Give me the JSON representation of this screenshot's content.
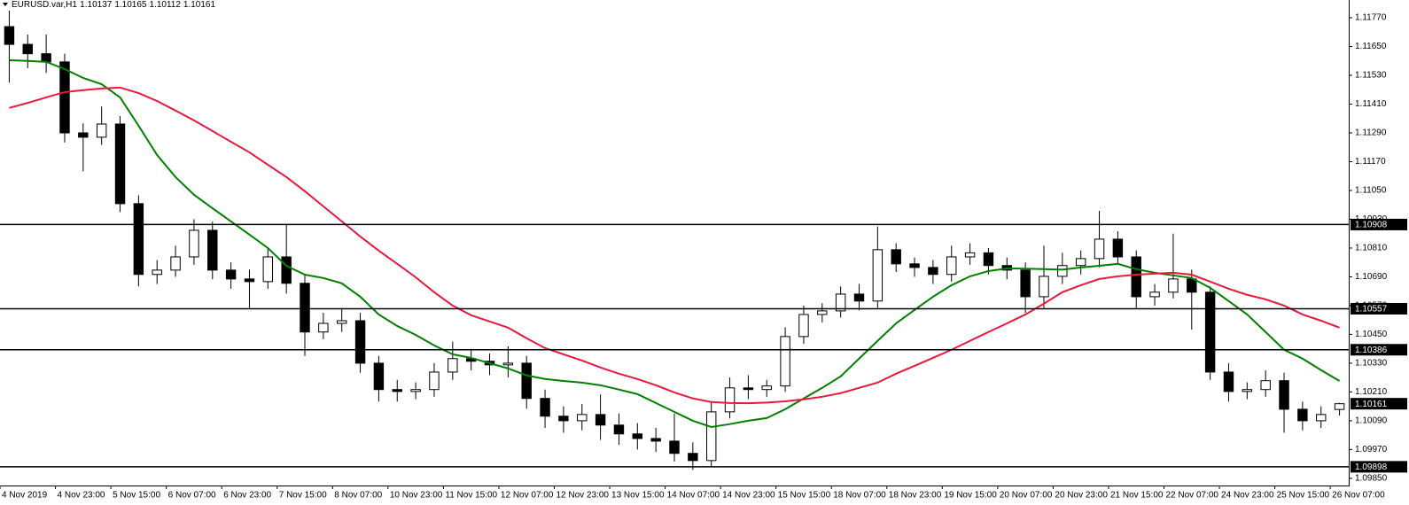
{
  "chart_data": {
    "type": "candlestick",
    "title": "EURUSD.var,H1",
    "categories": [
      "4 Nov 2019",
      null,
      null,
      "4 Nov 23:00",
      null,
      null,
      "5 Nov 15:00",
      null,
      null,
      "6 Nov 07:00",
      null,
      null,
      "6 Nov 23:00",
      null,
      null,
      "7 Nov 15:00",
      null,
      null,
      "8 Nov 07:00",
      null,
      null,
      "10 Nov 23:00",
      null,
      null,
      "11 Nov 15:00",
      null,
      null,
      "12 Nov 07:00",
      null,
      null,
      "12 Nov 23:00",
      null,
      null,
      "13 Nov 15:00",
      null,
      null,
      "14 Nov 07:00",
      null,
      null,
      "14 Nov 23:00",
      null,
      null,
      "15 Nov 15:00",
      null,
      null,
      "18 Nov 07:00",
      null,
      null,
      "18 Nov 23:00",
      null,
      null,
      "19 Nov 15:00",
      null,
      null,
      "20 Nov 07:00",
      null,
      null,
      "20 Nov 23:00",
      null,
      null,
      "21 Nov 15:00",
      null,
      null,
      "22 Nov 07:00",
      null,
      null,
      "24 Nov 23:00",
      null,
      null,
      "25 Nov 15:00",
      null,
      null,
      "26 Nov 07:00"
    ],
    "candles": {
      "up_color": "#ffffff",
      "down_color": "#000000",
      "outline_color": "#000000",
      "open": [
        1.11733,
        1.11659,
        1.1162,
        1.11586,
        1.1129,
        1.11272,
        1.11327,
        1.10995,
        1.107,
        1.10718,
        1.10773,
        1.10884,
        1.10718,
        1.10681,
        1.1067,
        1.10773,
        1.10663,
        1.1046,
        1.10496,
        1.10507,
        1.1033,
        1.1022,
        1.10212,
        1.1022,
        1.10293,
        1.10349,
        1.10338,
        1.10323,
        1.1033,
        1.10183,
        1.10109,
        1.1009,
        1.10116,
        1.10072,
        1.10035,
        1.10016,
        1.10005,
        1.09954,
        1.09924,
        1.10127,
        1.10227,
        1.1022,
        1.10235,
        1.10441,
        1.10533,
        1.10548,
        1.10618,
        1.10589,
        1.10803,
        1.10744,
        1.10729,
        1.107,
        1.10773,
        1.1079,
        1.10737,
        1.10718,
        1.10607,
        1.10692,
        1.10737,
        1.10766,
        1.10847,
        1.10773,
        1.10607,
        1.10626,
        1.10681,
        1.10626,
        1.10293,
        1.10212,
        1.1022,
        1.10257,
        1.10138,
        1.1009,
        1.10137
      ],
      "high": [
        1.118,
        1.117,
        1.117,
        1.1162,
        1.1133,
        1.114,
        1.1136,
        1.1103,
        1.1076,
        1.1082,
        1.1093,
        1.1092,
        1.1075,
        1.1072,
        1.1081,
        1.1091,
        1.107,
        1.1054,
        1.1056,
        1.1054,
        1.1036,
        1.1026,
        1.1025,
        1.1033,
        1.1042,
        1.1039,
        1.1037,
        1.104,
        1.1036,
        1.1022,
        1.1015,
        1.1016,
        1.102,
        1.1012,
        1.1008,
        1.1006,
        1.1012,
        1.1,
        1.1017,
        1.1027,
        1.1028,
        1.1026,
        1.1048,
        1.1057,
        1.1058,
        1.1065,
        1.1066,
        1.109,
        1.1083,
        1.1077,
        1.1076,
        1.1082,
        1.1083,
        1.1081,
        1.1077,
        1.1075,
        1.1082,
        1.1079,
        1.108,
        1.10965,
        1.1088,
        1.108,
        1.1066,
        1.1087,
        1.1072,
        1.1065,
        1.1033,
        1.1025,
        1.103,
        1.1029,
        1.1017,
        1.1015,
        1.10165
      ],
      "low": [
        1.115,
        1.1156,
        1.1154,
        1.1125,
        1.1113,
        1.1124,
        1.1096,
        1.1065,
        1.1066,
        1.1069,
        1.1074,
        1.1068,
        1.1064,
        1.1056,
        1.1064,
        1.1062,
        1.1036,
        1.1043,
        1.1046,
        1.1029,
        1.1017,
        1.1017,
        1.1018,
        1.1019,
        1.1026,
        1.103,
        1.1028,
        1.1027,
        1.1014,
        1.1006,
        1.1004,
        1.1005,
        1.1001,
        1.0999,
        1.0997,
        1.0996,
        1.0992,
        1.09885,
        1.099,
        1.101,
        1.1018,
        1.1019,
        1.1021,
        1.1041,
        1.105,
        1.1052,
        1.1055,
        1.1056,
        1.1071,
        1.1069,
        1.1066,
        1.1067,
        1.1074,
        1.107,
        1.1068,
        1.1054,
        1.1056,
        1.1066,
        1.107,
        1.1073,
        1.1074,
        1.1056,
        1.1057,
        1.106,
        1.1047,
        1.1026,
        1.1017,
        1.1018,
        1.1019,
        1.1004,
        1.1005,
        1.1006,
        1.10112
      ],
      "close": [
        1.11659,
        1.1162,
        1.11586,
        1.1129,
        1.11272,
        1.11327,
        1.10995,
        1.107,
        1.10718,
        1.10773,
        1.10884,
        1.10718,
        1.10681,
        1.1067,
        1.10773,
        1.10663,
        1.1046,
        1.10496,
        1.10507,
        1.1033,
        1.1022,
        1.10212,
        1.1022,
        1.10293,
        1.10349,
        1.10338,
        1.10323,
        1.1033,
        1.10183,
        1.10109,
        1.1009,
        1.10116,
        1.10072,
        1.10035,
        1.10016,
        1.10005,
        1.09954,
        1.09924,
        1.10127,
        1.10227,
        1.1022,
        1.10235,
        1.10441,
        1.10533,
        1.10548,
        1.10618,
        1.10589,
        1.10803,
        1.10744,
        1.10729,
        1.107,
        1.10773,
        1.1079,
        1.10737,
        1.10718,
        1.10607,
        1.10692,
        1.10737,
        1.10766,
        1.10847,
        1.10773,
        1.10607,
        1.10626,
        1.10681,
        1.10626,
        1.10293,
        1.10212,
        1.1022,
        1.10257,
        1.10138,
        1.1009,
        1.10116,
        1.10161
      ]
    },
    "series": [
      {
        "color": "#008000",
        "values": [
          1.11593,
          1.1159,
          1.11586,
          1.11556,
          1.11519,
          1.11493,
          1.11438,
          1.1132,
          1.11198,
          1.11106,
          1.11032,
          1.10976,
          1.10921,
          1.10866,
          1.1081,
          1.10736,
          1.10699,
          1.10685,
          1.10663,
          1.10607,
          1.10533,
          1.10485,
          1.10448,
          1.10404,
          1.10367,
          1.10352,
          1.1033,
          1.10308,
          1.10279,
          1.10264,
          1.10256,
          1.10249,
          1.10238,
          1.1022,
          1.10201,
          1.10164,
          1.10127,
          1.1009,
          1.10064,
          1.10076,
          1.1009,
          1.10101,
          1.10138,
          1.10183,
          1.10227,
          1.10275,
          1.10349,
          1.10423,
          1.10496,
          1.10552,
          1.10607,
          1.10655,
          1.10692,
          1.10714,
          1.10725,
          1.10724,
          1.10722,
          1.1072,
          1.10729,
          1.10736,
          1.10744,
          1.10722,
          1.10707,
          1.10696,
          1.10685,
          1.10644,
          1.10589,
          1.10533,
          1.1046,
          1.10386,
          1.10349,
          1.10301,
          1.10256
        ]
      },
      {
        "color": "#e8193c",
        "values": [
          1.11394,
          1.11415,
          1.11438,
          1.1146,
          1.11468,
          1.11475,
          1.11479,
          1.11456,
          1.11423,
          1.11383,
          1.11342,
          1.11298,
          1.11253,
          1.11209,
          1.11157,
          1.11106,
          1.11047,
          1.10984,
          1.10921,
          1.10858,
          1.10799,
          1.10744,
          1.10688,
          1.10626,
          1.1057,
          1.1053,
          1.10504,
          1.10478,
          1.10434,
          1.10393,
          1.10367,
          1.10341,
          1.10312,
          1.10286,
          1.10264,
          1.10238,
          1.10208,
          1.10183,
          1.10168,
          1.10164,
          1.10163,
          1.10166,
          1.10171,
          1.10179,
          1.1019,
          1.10205,
          1.10227,
          1.10249,
          1.10286,
          1.10319,
          1.10352,
          1.10386,
          1.10423,
          1.1046,
          1.10496,
          1.10533,
          1.10578,
          1.10626,
          1.10655,
          1.10681,
          1.10692,
          1.10699,
          1.10703,
          1.10707,
          1.10699,
          1.1067,
          1.1064,
          1.10615,
          1.10596,
          1.1057,
          1.10533,
          1.10507,
          1.10478
        ]
      }
    ],
    "levels": [
      1.10908,
      1.10557,
      1.10386,
      1.09898
    ],
    "level_color": "#000000",
    "ylim": [
      1.0982,
      1.11844
    ],
    "yticks": [
      {
        "value": 1.0985,
        "label": "1.09850"
      },
      {
        "value": 1.0997,
        "label": "1.09970"
      },
      {
        "value": 1.1009,
        "label": "1.10090"
      },
      {
        "value": 1.1021,
        "label": "1.10210"
      },
      {
        "value": 1.1033,
        "label": "1.10330"
      },
      {
        "value": 1.1045,
        "label": "1.10450"
      },
      {
        "value": 1.1057,
        "label": "1.10570"
      },
      {
        "value": 1.1069,
        "label": "1.10690"
      },
      {
        "value": 1.1081,
        "label": "1.10810"
      },
      {
        "value": 1.1093,
        "label": "1.10930"
      },
      {
        "value": 1.1105,
        "label": "1.11050"
      },
      {
        "value": 1.1117,
        "label": "1.11170"
      },
      {
        "value": 1.1129,
        "label": "1.11290"
      },
      {
        "value": 1.1141,
        "label": "1.11410"
      },
      {
        "value": 1.1153,
        "label": "1.11530"
      },
      {
        "value": 1.1165,
        "label": "1.11650"
      },
      {
        "value": 1.1177,
        "label": "1.11770"
      }
    ],
    "grid": false
  }
}
